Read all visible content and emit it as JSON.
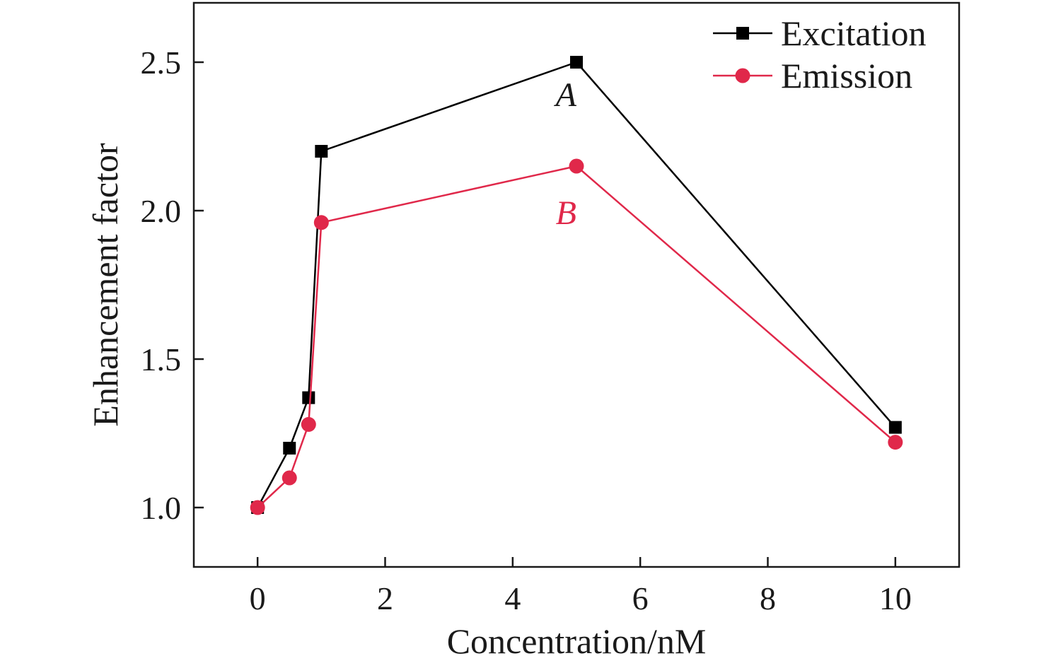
{
  "chart_data": {
    "type": "line",
    "title": "",
    "xlabel": "Concentration/nM",
    "ylabel": "Enhancement factor",
    "xlim": [
      -1,
      11
    ],
    "ylim": [
      0.8,
      2.7
    ],
    "xticks": [
      0,
      2,
      4,
      6,
      8,
      10
    ],
    "yticks": [
      1.0,
      1.5,
      2.0,
      2.5
    ],
    "xtick_labels": [
      "0",
      "2",
      "4",
      "6",
      "8",
      "10"
    ],
    "ytick_labels": [
      "1.0",
      "1.5",
      "2.0",
      "2.5"
    ],
    "grid": false,
    "legend_position": "top-right",
    "series": [
      {
        "name": "Excitation",
        "color": "#000000",
        "marker": "square",
        "x": [
          0,
          0.5,
          0.8,
          1,
          5,
          10
        ],
        "y": [
          1.0,
          1.2,
          1.37,
          2.2,
          2.5,
          1.27
        ]
      },
      {
        "name": "Emission",
        "color": "#e0284a",
        "marker": "circle",
        "x": [
          0,
          0.5,
          0.8,
          1,
          5,
          10
        ],
        "y": [
          1.0,
          1.1,
          1.28,
          1.96,
          2.15,
          1.22
        ]
      }
    ],
    "annotations": [
      {
        "text": "A",
        "x": 5,
        "y": 2.5,
        "color": "#1a1a1a"
      },
      {
        "text": "B",
        "x": 5,
        "y": 2.15,
        "color": "#e0284a"
      }
    ]
  }
}
